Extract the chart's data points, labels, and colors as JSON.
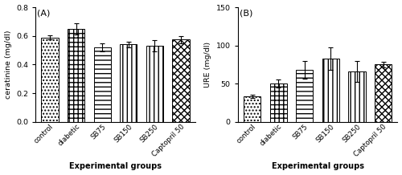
{
  "panel_A": {
    "title": "(A)",
    "categories": [
      "control",
      "diabetic",
      "SB75",
      "SB150",
      "SB250",
      "Captopril 50"
    ],
    "values": [
      0.59,
      0.65,
      0.52,
      0.54,
      0.53,
      0.575
    ],
    "errors": [
      0.015,
      0.04,
      0.03,
      0.02,
      0.04,
      0.025
    ],
    "ylabel": "ceratinine (mg/dl)",
    "xlabel": "Experimental groups",
    "ylim": [
      0,
      0.8
    ],
    "yticks": [
      0.0,
      0.2,
      0.4,
      0.6,
      0.8
    ],
    "hatch_patterns": [
      "....",
      "+++",
      "---",
      "|||",
      "|||",
      "xxxx"
    ],
    "bar_color": "white",
    "edgecolor": "black"
  },
  "panel_B": {
    "title": "(B)",
    "categories": [
      "control",
      "diabetic",
      "SB75",
      "SB150",
      "SB250",
      "Captopril 50"
    ],
    "values": [
      33,
      50,
      68,
      83,
      66,
      75
    ],
    "errors": [
      2,
      5,
      12,
      15,
      14,
      4
    ],
    "ylabel": "URE (mg/dl)",
    "xlabel": "Experimental groups",
    "ylim": [
      0,
      150
    ],
    "yticks": [
      0,
      50,
      100,
      150
    ],
    "hatch_patterns": [
      "....",
      "+++",
      "---",
      "|||",
      "|||",
      "xxxx"
    ],
    "bar_color": "white",
    "edgecolor": "black"
  }
}
